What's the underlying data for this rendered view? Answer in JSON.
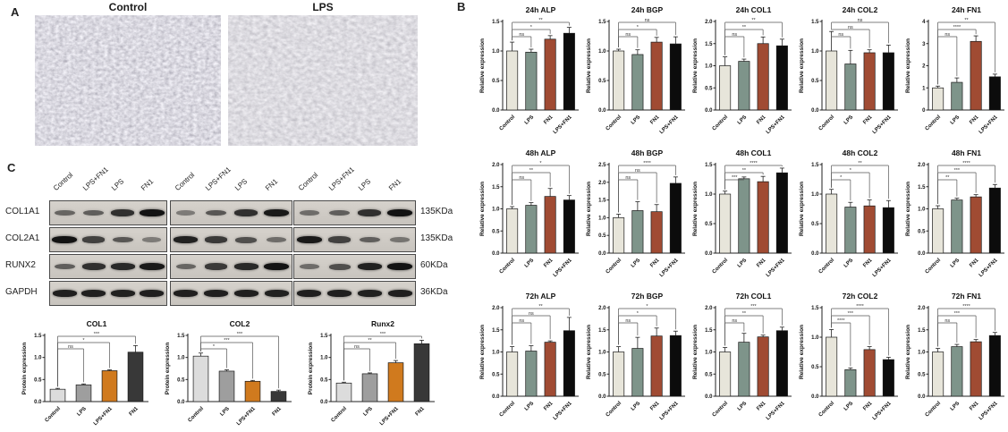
{
  "panelA": {
    "label": "A",
    "images": [
      {
        "title": "Control",
        "description": "phase-contrast micrograph of dense spindle-shaped cells"
      },
      {
        "title": "LPS",
        "description": "phase-contrast micrograph of cells after LPS treatment"
      }
    ]
  },
  "panelB": {
    "label": "B"
  },
  "panelC": {
    "label": "C",
    "blot": {
      "lane_labels": [
        "Control",
        "LPS+FN1",
        "LPS",
        "FN1"
      ],
      "rows": [
        {
          "protein": "COL1A1",
          "weight": "135KDa",
          "blocks": [
            [
              0.45,
              0.5,
              0.8,
              1.0
            ],
            [
              0.3,
              0.55,
              0.8,
              0.95
            ],
            [
              0.4,
              0.5,
              0.8,
              1.0
            ]
          ]
        },
        {
          "protein": "COL2A1",
          "weight": "135KDa",
          "blocks": [
            [
              1.0,
              0.7,
              0.55,
              0.3
            ],
            [
              0.9,
              0.75,
              0.6,
              0.4
            ],
            [
              0.95,
              0.7,
              0.5,
              0.35
            ]
          ]
        },
        {
          "protein": "RUNX2",
          "weight": "60KDa",
          "blocks": [
            [
              0.5,
              0.8,
              0.85,
              0.95
            ],
            [
              0.45,
              0.75,
              0.85,
              1.0
            ],
            [
              0.4,
              0.6,
              0.9,
              1.0
            ]
          ]
        },
        {
          "protein": "GAPDH",
          "weight": "36KDa",
          "blocks": [
            [
              0.92,
              0.92,
              0.9,
              0.92
            ],
            [
              0.92,
              0.92,
              0.92,
              0.9
            ],
            [
              0.92,
              0.92,
              0.9,
              0.92
            ]
          ]
        }
      ]
    }
  },
  "palettes": {
    "panelB": [
      "#e7e5da",
      "#7e948a",
      "#a04b33",
      "#0c0c0c"
    ],
    "panelC": [
      "#dcdcdc",
      "#9e9e9e",
      "#d07a1e",
      "#383838"
    ]
  },
  "chart_data": [
    {
      "panel": "B",
      "type": "bar",
      "title": "24h ALP",
      "ylabel": "Relative expression",
      "categories": [
        "Control",
        "LPS",
        "FN1",
        "LPS+FN1"
      ],
      "values": [
        1.0,
        0.98,
        1.2,
        1.3
      ],
      "errors": [
        0.15,
        0.05,
        0.06,
        0.1
      ],
      "ylim": [
        0,
        1.5
      ],
      "yticks": [
        0,
        0.5,
        1.0,
        1.5
      ],
      "grid": false,
      "significance": [
        {
          "a": 0,
          "b": 1,
          "label": "ns"
        },
        {
          "a": 0,
          "b": 2,
          "label": "*"
        },
        {
          "a": 0,
          "b": 3,
          "label": "**"
        }
      ]
    },
    {
      "panel": "B",
      "type": "bar",
      "title": "24h BGP",
      "ylabel": "Relative expression",
      "categories": [
        "Control",
        "LPS",
        "FN1",
        "LPS+FN1"
      ],
      "values": [
        1.0,
        0.94,
        1.15,
        1.12
      ],
      "errors": [
        0.03,
        0.08,
        0.08,
        0.12
      ],
      "ylim": [
        0,
        1.5
      ],
      "yticks": [
        0,
        0.5,
        1.0,
        1.5
      ],
      "grid": false,
      "significance": [
        {
          "a": 0,
          "b": 1,
          "label": "ns"
        },
        {
          "a": 0,
          "b": 2,
          "label": "*"
        },
        {
          "a": 0,
          "b": 3,
          "label": "ns"
        }
      ]
    },
    {
      "panel": "B",
      "type": "bar",
      "title": "24h COL1",
      "ylabel": "Relative expression",
      "categories": [
        "Control",
        "LPS",
        "FN1",
        "LPS+FN1"
      ],
      "values": [
        1.0,
        1.1,
        1.5,
        1.45
      ],
      "errors": [
        0.2,
        0.05,
        0.15,
        0.15
      ],
      "ylim": [
        0,
        2.0
      ],
      "yticks": [
        0,
        0.5,
        1.0,
        1.5,
        2.0
      ],
      "grid": false,
      "significance": [
        {
          "a": 0,
          "b": 1,
          "label": "ns"
        },
        {
          "a": 0,
          "b": 2,
          "label": "**"
        },
        {
          "a": 0,
          "b": 3,
          "label": "**"
        }
      ]
    },
    {
      "panel": "B",
      "type": "bar",
      "title": "24h COL2",
      "ylabel": "Relative expression",
      "categories": [
        "Control",
        "LPS",
        "FN1",
        "LPS+FN1"
      ],
      "values": [
        1.0,
        0.78,
        0.97,
        0.97
      ],
      "errors": [
        0.33,
        0.23,
        0.05,
        0.13
      ],
      "ylim": [
        0,
        1.5
      ],
      "yticks": [
        0,
        0.5,
        1.0,
        1.5
      ],
      "grid": false,
      "significance": [
        {
          "a": 0,
          "b": 1,
          "label": "ns"
        },
        {
          "a": 0,
          "b": 2,
          "label": "ns"
        },
        {
          "a": 0,
          "b": 3,
          "label": "ns"
        }
      ]
    },
    {
      "panel": "B",
      "type": "bar",
      "title": "24h FN1",
      "ylabel": "Relative expression",
      "categories": [
        "Control",
        "LPS",
        "FN1",
        "LPS+FN1"
      ],
      "values": [
        1.0,
        1.25,
        3.1,
        1.5
      ],
      "errors": [
        0.08,
        0.2,
        0.25,
        0.12
      ],
      "ylim": [
        0,
        4
      ],
      "yticks": [
        0,
        1,
        2,
        3,
        4
      ],
      "grid": false,
      "significance": [
        {
          "a": 0,
          "b": 1,
          "label": "ns"
        },
        {
          "a": 0,
          "b": 2,
          "label": "****"
        },
        {
          "a": 0,
          "b": 3,
          "label": "**"
        }
      ]
    },
    {
      "panel": "B",
      "type": "bar",
      "title": "48h ALP",
      "ylabel": "Relative expression",
      "categories": [
        "Control",
        "LPS",
        "FN1",
        "LPS+FN1"
      ],
      "values": [
        1.0,
        1.08,
        1.28,
        1.2
      ],
      "errors": [
        0.05,
        0.06,
        0.18,
        0.1
      ],
      "ylim": [
        0,
        2.0
      ],
      "yticks": [
        0,
        0.5,
        1.0,
        1.5,
        2.0
      ],
      "grid": false,
      "significance": [
        {
          "a": 0,
          "b": 1,
          "label": "ns"
        },
        {
          "a": 0,
          "b": 2,
          "label": "**"
        },
        {
          "a": 0,
          "b": 3,
          "label": "*"
        }
      ]
    },
    {
      "panel": "B",
      "type": "bar",
      "title": "48h BGP",
      "ylabel": "Relative expression",
      "categories": [
        "Control",
        "LPS",
        "FN1",
        "LPS+FN1"
      ],
      "values": [
        1.0,
        1.2,
        1.17,
        1.97
      ],
      "errors": [
        0.1,
        0.25,
        0.2,
        0.18
      ],
      "ylim": [
        0,
        2.5
      ],
      "yticks": [
        0,
        0.5,
        1.0,
        1.5,
        2.0,
        2.5
      ],
      "grid": false,
      "significance": [
        {
          "a": 0,
          "b": 1,
          "label": "ns"
        },
        {
          "a": 0,
          "b": 2,
          "label": "ns"
        },
        {
          "a": 0,
          "b": 3,
          "label": "****"
        }
      ]
    },
    {
      "panel": "B",
      "type": "bar",
      "title": "48h COL1",
      "ylabel": "Relative expression",
      "categories": [
        "Control",
        "LPS",
        "FN1",
        "LPS+FN1"
      ],
      "values": [
        1.0,
        1.26,
        1.21,
        1.36
      ],
      "errors": [
        0.05,
        0.03,
        0.09,
        0.08
      ],
      "ylim": [
        0,
        1.5
      ],
      "yticks": [
        0,
        0.5,
        1.0,
        1.5
      ],
      "grid": false,
      "significance": [
        {
          "a": 0,
          "b": 1,
          "label": "***"
        },
        {
          "a": 0,
          "b": 2,
          "label": "**"
        },
        {
          "a": 0,
          "b": 3,
          "label": "****"
        }
      ]
    },
    {
      "panel": "B",
      "type": "bar",
      "title": "48h COL2",
      "ylabel": "Relative expression",
      "categories": [
        "Control",
        "LPS",
        "FN1",
        "LPS+FN1"
      ],
      "values": [
        1.0,
        0.78,
        0.8,
        0.77
      ],
      "errors": [
        0.08,
        0.08,
        0.1,
        0.12
      ],
      "ylim": [
        0,
        1.5
      ],
      "yticks": [
        0,
        0.5,
        1.0,
        1.5
      ],
      "grid": false,
      "significance": [
        {
          "a": 0,
          "b": 1,
          "label": "*"
        },
        {
          "a": 0,
          "b": 2,
          "label": "*"
        },
        {
          "a": 0,
          "b": 3,
          "label": "**"
        }
      ]
    },
    {
      "panel": "B",
      "type": "bar",
      "title": "48h FN1",
      "ylabel": "Relative expression",
      "categories": [
        "Control",
        "LPS",
        "FN1",
        "LPS+FN1"
      ],
      "values": [
        1.0,
        1.2,
        1.27,
        1.47
      ],
      "errors": [
        0.07,
        0.04,
        0.05,
        0.08
      ],
      "ylim": [
        0,
        2.0
      ],
      "yticks": [
        0,
        0.5,
        1.0,
        1.5,
        2.0
      ],
      "grid": false,
      "significance": [
        {
          "a": 0,
          "b": 1,
          "label": "**"
        },
        {
          "a": 0,
          "b": 2,
          "label": "***"
        },
        {
          "a": 0,
          "b": 3,
          "label": "****"
        }
      ]
    },
    {
      "panel": "B",
      "type": "bar",
      "title": "72h ALP",
      "ylabel": "Relative expression",
      "categories": [
        "Control",
        "LPS",
        "FN1",
        "LPS+FN1"
      ],
      "values": [
        1.0,
        1.02,
        1.22,
        1.48
      ],
      "errors": [
        0.12,
        0.12,
        0.03,
        0.3
      ],
      "ylim": [
        0,
        2.0
      ],
      "yticks": [
        0,
        0.5,
        1.0,
        1.5,
        2.0
      ],
      "grid": false,
      "significance": [
        {
          "a": 0,
          "b": 1,
          "label": "ns"
        },
        {
          "a": 0,
          "b": 2,
          "label": "ns"
        },
        {
          "a": 0,
          "b": 3,
          "label": "**"
        }
      ]
    },
    {
      "panel": "B",
      "type": "bar",
      "title": "72h BGP",
      "ylabel": "Relative expression",
      "categories": [
        "Control",
        "LPS",
        "FN1",
        "LPS+FN1"
      ],
      "values": [
        1.0,
        1.08,
        1.36,
        1.37
      ],
      "errors": [
        0.12,
        0.25,
        0.18,
        0.1
      ],
      "ylim": [
        0,
        2.0
      ],
      "yticks": [
        0,
        0.5,
        1.0,
        1.5,
        2.0
      ],
      "grid": false,
      "significance": [
        {
          "a": 0,
          "b": 1,
          "label": "ns"
        },
        {
          "a": 0,
          "b": 2,
          "label": "*"
        },
        {
          "a": 0,
          "b": 3,
          "label": "*"
        }
      ]
    },
    {
      "panel": "B",
      "type": "bar",
      "title": "72h COL1",
      "ylabel": "Relative expression",
      "categories": [
        "Control",
        "LPS",
        "FN1",
        "LPS+FN1"
      ],
      "values": [
        1.0,
        1.22,
        1.34,
        1.48
      ],
      "errors": [
        0.1,
        0.2,
        0.04,
        0.08
      ],
      "ylim": [
        0,
        2.0
      ],
      "yticks": [
        0,
        0.5,
        1.0,
        1.5,
        2.0
      ],
      "grid": false,
      "significance": [
        {
          "a": 0,
          "b": 1,
          "label": "ns"
        },
        {
          "a": 0,
          "b": 2,
          "label": "**"
        },
        {
          "a": 0,
          "b": 3,
          "label": "***"
        }
      ]
    },
    {
      "panel": "B",
      "type": "bar",
      "title": "72h COL2",
      "ylabel": "Relative expression",
      "categories": [
        "Control",
        "LPS",
        "FN1",
        "LPS+FN1"
      ],
      "values": [
        1.0,
        0.45,
        0.79,
        0.62
      ],
      "errors": [
        0.13,
        0.03,
        0.05,
        0.04
      ],
      "ylim": [
        0,
        1.5
      ],
      "yticks": [
        0,
        0.5,
        1.0,
        1.5
      ],
      "grid": false,
      "significance": [
        {
          "a": 0,
          "b": 1,
          "label": "****"
        },
        {
          "a": 0,
          "b": 2,
          "label": "***"
        },
        {
          "a": 0,
          "b": 3,
          "label": "****"
        }
      ]
    },
    {
      "panel": "B",
      "type": "bar",
      "title": "72h FN1",
      "ylabel": "Relative expression",
      "categories": [
        "Control",
        "LPS",
        "FN1",
        "LPS+FN1"
      ],
      "values": [
        1.0,
        1.12,
        1.23,
        1.37
      ],
      "errors": [
        0.08,
        0.05,
        0.05,
        0.07
      ],
      "ylim": [
        0,
        2.0
      ],
      "yticks": [
        0,
        0.5,
        1.0,
        1.5,
        2.0
      ],
      "grid": false,
      "significance": [
        {
          "a": 0,
          "b": 1,
          "label": "ns"
        },
        {
          "a": 0,
          "b": 2,
          "label": "***"
        },
        {
          "a": 0,
          "b": 3,
          "label": "****"
        }
      ]
    },
    {
      "panel": "C",
      "type": "bar",
      "title": "COL1",
      "ylabel": "Protein expression",
      "categories": [
        "Control",
        "LPS",
        "LPS+FN1",
        "FN1"
      ],
      "values": [
        0.28,
        0.38,
        0.7,
        1.12
      ],
      "errors": [
        0.02,
        0.02,
        0.02,
        0.15
      ],
      "ylim": [
        0,
        1.5
      ],
      "yticks": [
        0,
        0.5,
        1.0,
        1.5
      ],
      "grid": false,
      "significance": [
        {
          "a": 0,
          "b": 1,
          "label": "ns"
        },
        {
          "a": 0,
          "b": 2,
          "label": "*"
        },
        {
          "a": 0,
          "b": 3,
          "label": "***"
        }
      ]
    },
    {
      "panel": "C",
      "type": "bar",
      "title": "COL2",
      "ylabel": "Protein expression",
      "categories": [
        "Control",
        "LPS",
        "LPS+FN1",
        "FN1"
      ],
      "values": [
        1.03,
        0.69,
        0.46,
        0.23
      ],
      "errors": [
        0.07,
        0.03,
        0.02,
        0.03
      ],
      "ylim": [
        0,
        1.5
      ],
      "yticks": [
        0,
        0.5,
        1.0,
        1.5
      ],
      "grid": false,
      "significance": [
        {
          "a": 0,
          "b": 1,
          "label": "*"
        },
        {
          "a": 0,
          "b": 2,
          "label": "***"
        },
        {
          "a": 0,
          "b": 3,
          "label": "***"
        }
      ]
    },
    {
      "panel": "C",
      "type": "bar",
      "title": "Runx2",
      "ylabel": "Protein expression",
      "categories": [
        "Control",
        "LPS",
        "LPS+FN1",
        "FN1"
      ],
      "values": [
        0.42,
        0.63,
        0.88,
        1.31
      ],
      "errors": [
        0.02,
        0.02,
        0.05,
        0.08
      ],
      "ylim": [
        0,
        1.5
      ],
      "yticks": [
        0,
        0.5,
        1.0,
        1.5
      ],
      "grid": false,
      "significance": [
        {
          "a": 0,
          "b": 1,
          "label": "ns"
        },
        {
          "a": 0,
          "b": 2,
          "label": "**"
        },
        {
          "a": 0,
          "b": 3,
          "label": "***"
        }
      ]
    }
  ]
}
